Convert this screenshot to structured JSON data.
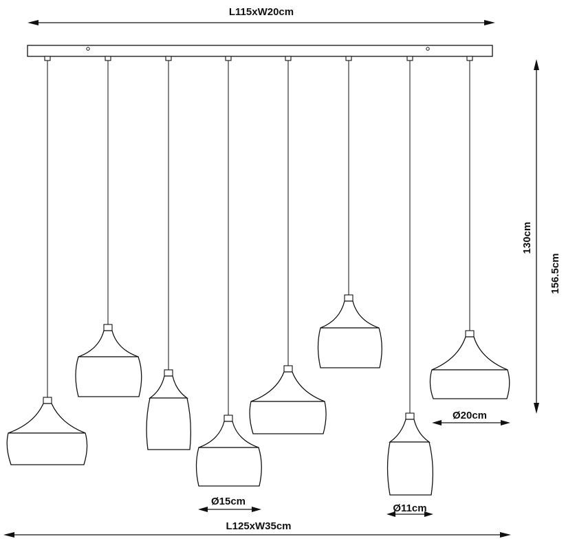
{
  "dimensions": {
    "top_width": "L115xW20cm",
    "bottom_width": "L125xW35cm",
    "drop_height": "130cm",
    "total_height": "156.5cm",
    "large_shade_diameter": "Ø20cm",
    "medium_shade_diameter": "Ø15cm",
    "small_shade_diameter": "Ø11cm"
  },
  "colors": {
    "line": "#111111",
    "background": "#ffffff"
  }
}
